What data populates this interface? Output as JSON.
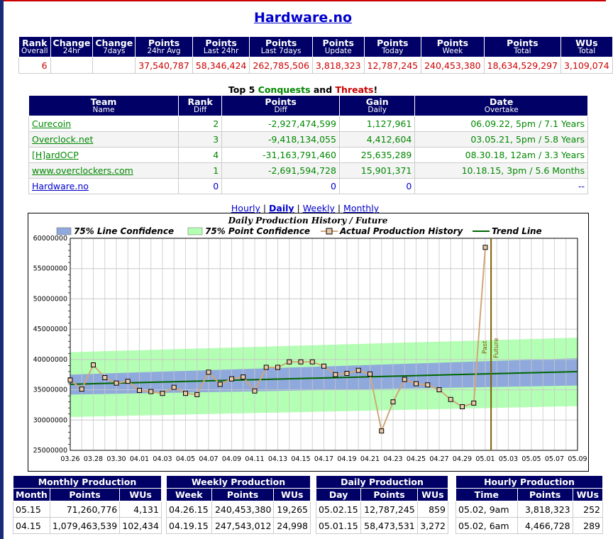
{
  "team_title": "Hardware.no",
  "stats": {
    "headers": [
      [
        "Rank",
        "Overall"
      ],
      [
        "Change",
        "24hr"
      ],
      [
        "Change",
        "7days"
      ],
      [
        "Points",
        "24hr Avg"
      ],
      [
        "Points",
        "Last 24hr"
      ],
      [
        "Points",
        "Last 7days"
      ],
      [
        "Points",
        "Update"
      ],
      [
        "Points",
        "Today"
      ],
      [
        "Points",
        "Week"
      ],
      [
        "Points",
        "Total"
      ],
      [
        "WUs",
        "Total"
      ]
    ],
    "values": [
      "6",
      "",
      "",
      "37,540,787",
      "58,346,424",
      "262,785,506",
      "3,818,323",
      "12,787,245",
      "240,453,380",
      "18,634,529,297",
      "3,109,074"
    ]
  },
  "top5": {
    "prefix": "Top 5 ",
    "conquests": "Conquests",
    "and": " and ",
    "threats": "Threats",
    "suffix": "!"
  },
  "conquests": {
    "headers": [
      [
        "Team",
        "Name"
      ],
      [
        "Rank",
        "Diff"
      ],
      [
        "Points",
        "Diff"
      ],
      [
        "Gain",
        "Daily"
      ],
      [
        "Date",
        "Overtake"
      ]
    ],
    "rows": [
      [
        "Curecoin",
        "2",
        "-2,927,474,599",
        "1,127,961",
        "06.09.22, 5pm / 7.1 Years"
      ],
      [
        "Overclock.net",
        "3",
        "-9,418,134,055",
        "4,412,604",
        "03.05.21, 5pm / 5.8 Years"
      ],
      [
        "[H]ardOCP",
        "4",
        "-31,163,791,460",
        "25,635,289",
        "08.30.18, 12am / 3.3 Years"
      ],
      [
        "www.overclockers.com",
        "1",
        "-2,691,594,728",
        "15,901,371",
        "10.18.15, 3pm / 5.6 Months"
      ],
      [
        "Hardware.no",
        "0",
        "0",
        "0",
        "--"
      ]
    ]
  },
  "nav": {
    "hourly": "Hourly",
    "daily": "Daily",
    "weekly": "Weekly",
    "monthly": "Monthly",
    "sep": " | "
  },
  "colors": {
    "header_bg": "#000066",
    "line_conf": "#8fa9dc",
    "point_conf": "#b3ffb3",
    "actual": "#d2a679",
    "trend": "#006600",
    "past_future": "#806000"
  },
  "chart_data": {
    "type": "line",
    "title": "Daily Production History / Future",
    "legend": [
      "75% Line Confidence",
      "75% Point Confidence",
      "Actual Production History",
      "Trend Line"
    ],
    "ylim": [
      25000000,
      60000000
    ],
    "y_ticks": [
      "25000000",
      "30000000",
      "35000000",
      "40000000",
      "45000000",
      "50000000",
      "55000000",
      "60000000"
    ],
    "x_ticks": [
      "03.26",
      "03.28",
      "03.30",
      "04.01",
      "04.03",
      "04.05",
      "04.07",
      "04.09",
      "04.11",
      "04.13",
      "04.15",
      "04.17",
      "04.19",
      "04.21",
      "04.23",
      "04.25",
      "04.27",
      "04.29",
      "05.01",
      "05.03",
      "05.05",
      "05.07",
      "05.09"
    ],
    "x_start": "03.26",
    "x_end": "05.09",
    "past_label": "Past",
    "future_label": "Future",
    "divider_day": "05.01.5",
    "actual": [
      [
        "03.26",
        36600000
      ],
      [
        "03.27",
        35100000
      ],
      [
        "03.28",
        39100000
      ],
      [
        "03.29",
        37000000
      ],
      [
        "03.30",
        36100000
      ],
      [
        "03.31",
        36400000
      ],
      [
        "04.01",
        34900000
      ],
      [
        "04.02",
        34700000
      ],
      [
        "04.03",
        34400000
      ],
      [
        "04.04",
        35400000
      ],
      [
        "04.05",
        34400000
      ],
      [
        "04.06",
        34200000
      ],
      [
        "04.07",
        37900000
      ],
      [
        "04.08",
        35900000
      ],
      [
        "04.09",
        36800000
      ],
      [
        "04.10",
        37100000
      ],
      [
        "04.11",
        34800000
      ],
      [
        "04.12",
        38700000
      ],
      [
        "04.13",
        38700000
      ],
      [
        "04.14",
        39600000
      ],
      [
        "04.15",
        39600000
      ],
      [
        "04.16",
        39600000
      ],
      [
        "04.17",
        38900000
      ],
      [
        "04.18",
        37500000
      ],
      [
        "04.19",
        37700000
      ],
      [
        "04.20",
        38200000
      ],
      [
        "04.21",
        37600000
      ],
      [
        "04.22",
        28200000
      ],
      [
        "04.23",
        33000000
      ],
      [
        "04.24",
        36700000
      ],
      [
        "04.25",
        36000000
      ],
      [
        "04.26",
        35800000
      ],
      [
        "04.27",
        35000000
      ],
      [
        "04.28",
        33400000
      ],
      [
        "04.29",
        32200000
      ],
      [
        "04.30",
        32800000
      ],
      [
        "05.01",
        58500000
      ]
    ],
    "trend": [
      [
        "03.26",
        35900000
      ],
      [
        "05.09",
        38000000
      ]
    ],
    "line_conf": {
      "start": [
        34200000,
        37500000
      ],
      "end": [
        35700000,
        40200000
      ]
    },
    "point_conf": {
      "start": [
        30500000,
        41200000
      ],
      "end": [
        32300000,
        43600000
      ]
    }
  },
  "monthly": {
    "title": "Monthly Production",
    "headers": [
      "Month",
      "Points",
      "WUs"
    ],
    "rows": [
      [
        "05.15",
        "71,260,776",
        "4,131"
      ],
      [
        "04.15",
        "1,079,463,539",
        "102,434"
      ]
    ]
  },
  "weekly": {
    "title": "Weekly Production",
    "headers": [
      "Week",
      "Points",
      "WUs"
    ],
    "rows": [
      [
        "04.26.15",
        "240,453,380",
        "19,265"
      ],
      [
        "04.19.15",
        "247,543,012",
        "24,998"
      ]
    ]
  },
  "daily": {
    "title": "Daily Production",
    "headers": [
      "Day",
      "Points",
      "WUs"
    ],
    "rows": [
      [
        "05.02.15",
        "12,787,245",
        "859"
      ],
      [
        "05.01.15",
        "58,473,531",
        "3,272"
      ]
    ]
  },
  "hourly": {
    "title": "Hourly Production",
    "headers": [
      "Time",
      "Points",
      "WUs"
    ],
    "rows": [
      [
        "05.02, 9am",
        "3,818,323",
        "252"
      ],
      [
        "05.02, 6am",
        "4,466,728",
        "289"
      ]
    ]
  }
}
